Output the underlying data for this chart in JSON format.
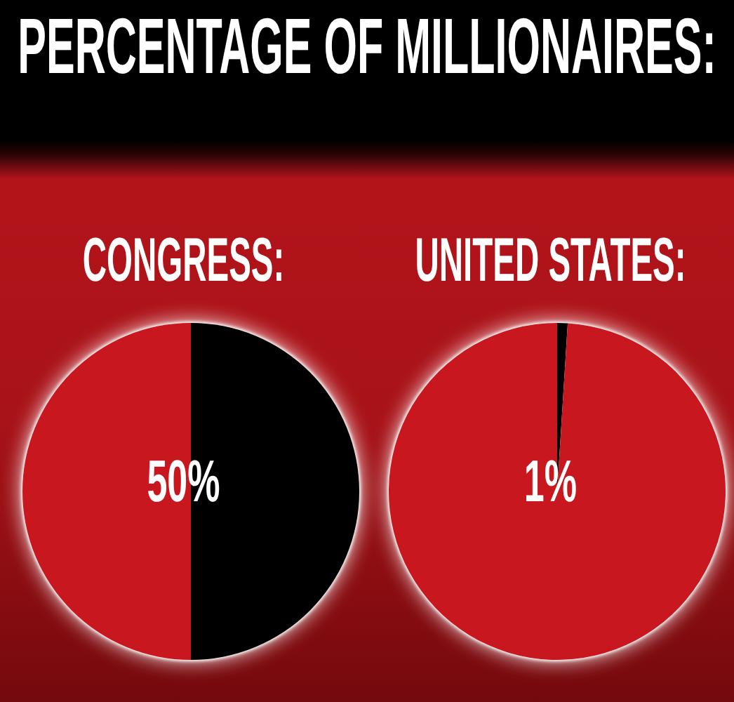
{
  "chart_data": [
    {
      "type": "pie",
      "title": "PERCENTAGE OF MILLIONAIRES:",
      "subtitle": "CONGRESS:",
      "categories": [
        null,
        null
      ],
      "values": [
        50,
        50
      ],
      "colors": [
        "#000000",
        "#c8171e"
      ],
      "annotations": [
        "50%"
      ]
    },
    {
      "type": "pie",
      "subtitle": "UNITED STATES:",
      "categories": [
        null,
        null
      ],
      "values": [
        1,
        99
      ],
      "colors": [
        "#000000",
        "#c8171e"
      ],
      "annotations": [
        "1%"
      ]
    }
  ]
}
